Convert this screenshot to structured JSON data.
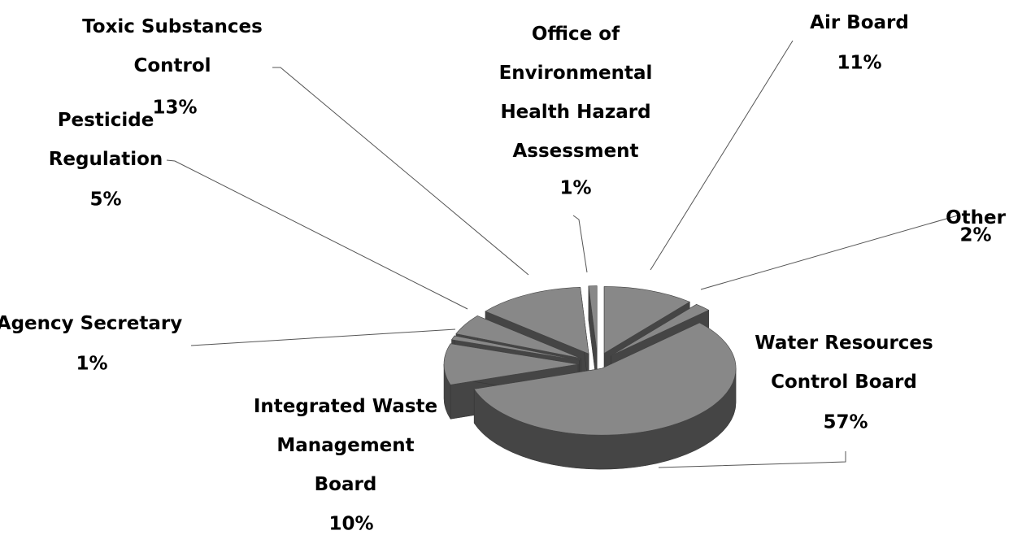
{
  "chart_data": {
    "type": "pie",
    "categories": [
      "Air Board",
      "Other",
      "Water Resources Control Board",
      "Integrated Waste Management Board",
      "Agency Secretary",
      "Pesticide Regulation",
      "Toxic Substances Control",
      "Office of Environmental Health Hazard Assessment"
    ],
    "values": [
      11,
      2,
      57,
      10,
      1,
      5,
      13,
      1
    ],
    "value_labels": [
      "11%",
      "2%",
      "57%",
      "10%",
      "1%",
      "5%",
      "13%",
      "1%"
    ],
    "color": "#888888"
  }
}
